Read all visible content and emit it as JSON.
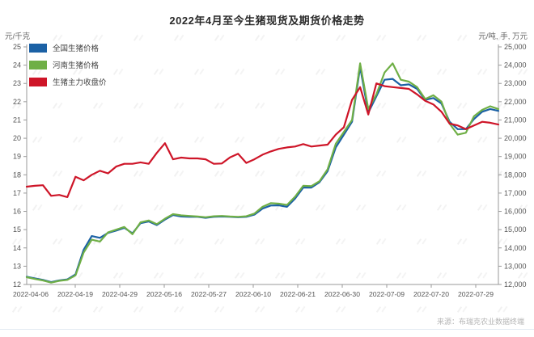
{
  "title": "2022年4月至今生猪现货及期货价格走势",
  "axes": {
    "left_unit": "元/千克",
    "right_unit": "元/吨, 手, 万元"
  },
  "legend": [
    {
      "label": "全国生猪价格",
      "color": "#1B61A5"
    },
    {
      "label": "河南生猪价格",
      "color": "#6FAF46"
    },
    {
      "label": "生猪主力收盘价",
      "color": "#CE1528"
    }
  ],
  "source": "来源：布瑞克农业数据终端",
  "chart_data": {
    "type": "line",
    "title": "2022年4月至今生猪现货及期货价格走势",
    "grid": false,
    "legend_position": "top-left",
    "left_ylim": [
      12,
      25
    ],
    "left_ystep": 1,
    "right_ylim": [
      12000,
      25000
    ],
    "right_ystep": 1000,
    "x_tick_labels": [
      "2022-04-06",
      "2022-04-19",
      "2022-04-29",
      "2022-05-16",
      "2022-05-27",
      "2022-06-10",
      "2022-06-21",
      "2022-06-30",
      "2022-07-09",
      "2022-07-20",
      "2022-07-29"
    ],
    "x": [
      "2022-04-04",
      "2022-04-06",
      "2022-04-08",
      "2022-04-10",
      "2022-04-12",
      "2022-04-14",
      "2022-04-16",
      "2022-04-18",
      "2022-04-20",
      "2022-04-22",
      "2022-04-24",
      "2022-04-26",
      "2022-04-28",
      "2022-04-30",
      "2022-05-02",
      "2022-05-04",
      "2022-05-06",
      "2022-05-08",
      "2022-05-10",
      "2022-05-12",
      "2022-05-14",
      "2022-05-16",
      "2022-05-18",
      "2022-05-20",
      "2022-05-22",
      "2022-05-24",
      "2022-05-26",
      "2022-05-28",
      "2022-05-30",
      "2022-06-01",
      "2022-06-03",
      "2022-06-05",
      "2022-06-07",
      "2022-06-09",
      "2022-06-11",
      "2022-06-13",
      "2022-06-15",
      "2022-06-17",
      "2022-06-19",
      "2022-06-21",
      "2022-06-23",
      "2022-06-25",
      "2022-06-27",
      "2022-06-29",
      "2022-07-01",
      "2022-07-03",
      "2022-07-05",
      "2022-07-07",
      "2022-07-09",
      "2022-07-11",
      "2022-07-13",
      "2022-07-15",
      "2022-07-17",
      "2022-07-19",
      "2022-07-21",
      "2022-07-23",
      "2022-07-25",
      "2022-07-27",
      "2022-07-29"
    ],
    "series": [
      {
        "id": "national-pig-price",
        "name": "全国生猪价格",
        "axis": "left",
        "unit": "元/千克",
        "color": "#1B61A5",
        "values": [
          12.42,
          12.33,
          12.25,
          12.13,
          12.22,
          12.28,
          12.55,
          13.9,
          14.65,
          14.55,
          14.82,
          14.95,
          15.1,
          14.8,
          15.35,
          15.45,
          15.25,
          15.55,
          15.8,
          15.72,
          15.7,
          15.7,
          15.65,
          15.7,
          15.72,
          15.7,
          15.68,
          15.7,
          15.82,
          16.15,
          16.32,
          16.33,
          16.25,
          16.7,
          17.3,
          17.3,
          17.6,
          18.2,
          19.5,
          20.2,
          20.9,
          23.9,
          21.4,
          22.3,
          23.2,
          23.25,
          22.9,
          22.95,
          22.7,
          22.1,
          22.2,
          21.9,
          20.9,
          20.5,
          20.5,
          21.05,
          21.45,
          21.6,
          21.5
        ]
      },
      {
        "id": "henan-pig-price",
        "name": "河南生猪价格",
        "axis": "left",
        "unit": "元/千克",
        "color": "#6FAF46",
        "values": [
          12.4,
          12.3,
          12.22,
          12.1,
          12.2,
          12.25,
          12.5,
          13.75,
          14.45,
          14.35,
          14.85,
          15.0,
          15.15,
          14.75,
          15.4,
          15.5,
          15.3,
          15.6,
          15.85,
          15.78,
          15.75,
          15.72,
          15.68,
          15.73,
          15.75,
          15.72,
          15.7,
          15.73,
          15.88,
          16.25,
          16.45,
          16.42,
          16.35,
          16.8,
          17.4,
          17.38,
          17.65,
          18.3,
          19.7,
          20.35,
          21.0,
          24.1,
          21.6,
          22.4,
          23.6,
          24.1,
          23.2,
          23.1,
          22.8,
          22.15,
          22.35,
          22.0,
          20.8,
          20.2,
          20.3,
          21.2,
          21.55,
          21.75,
          21.6
        ]
      },
      {
        "id": "hog-futures-close",
        "name": "生猪主力收盘价",
        "axis": "right",
        "unit": "元/吨",
        "color": "#CE1528",
        "values": [
          17350,
          17400,
          17430,
          16850,
          16900,
          16780,
          17890,
          17700,
          18000,
          18220,
          18080,
          18450,
          18600,
          18600,
          18680,
          18600,
          19200,
          19730,
          18850,
          18940,
          18900,
          18900,
          18850,
          18600,
          18620,
          18950,
          19150,
          18650,
          18850,
          19100,
          19280,
          19420,
          19500,
          19550,
          19680,
          19550,
          19600,
          19650,
          20200,
          20600,
          22100,
          22800,
          21300,
          23000,
          22850,
          22800,
          22750,
          22700,
          22400,
          22050,
          21850,
          21450,
          20800,
          20700,
          20500,
          20700,
          20900,
          20850,
          20750
        ]
      }
    ]
  }
}
